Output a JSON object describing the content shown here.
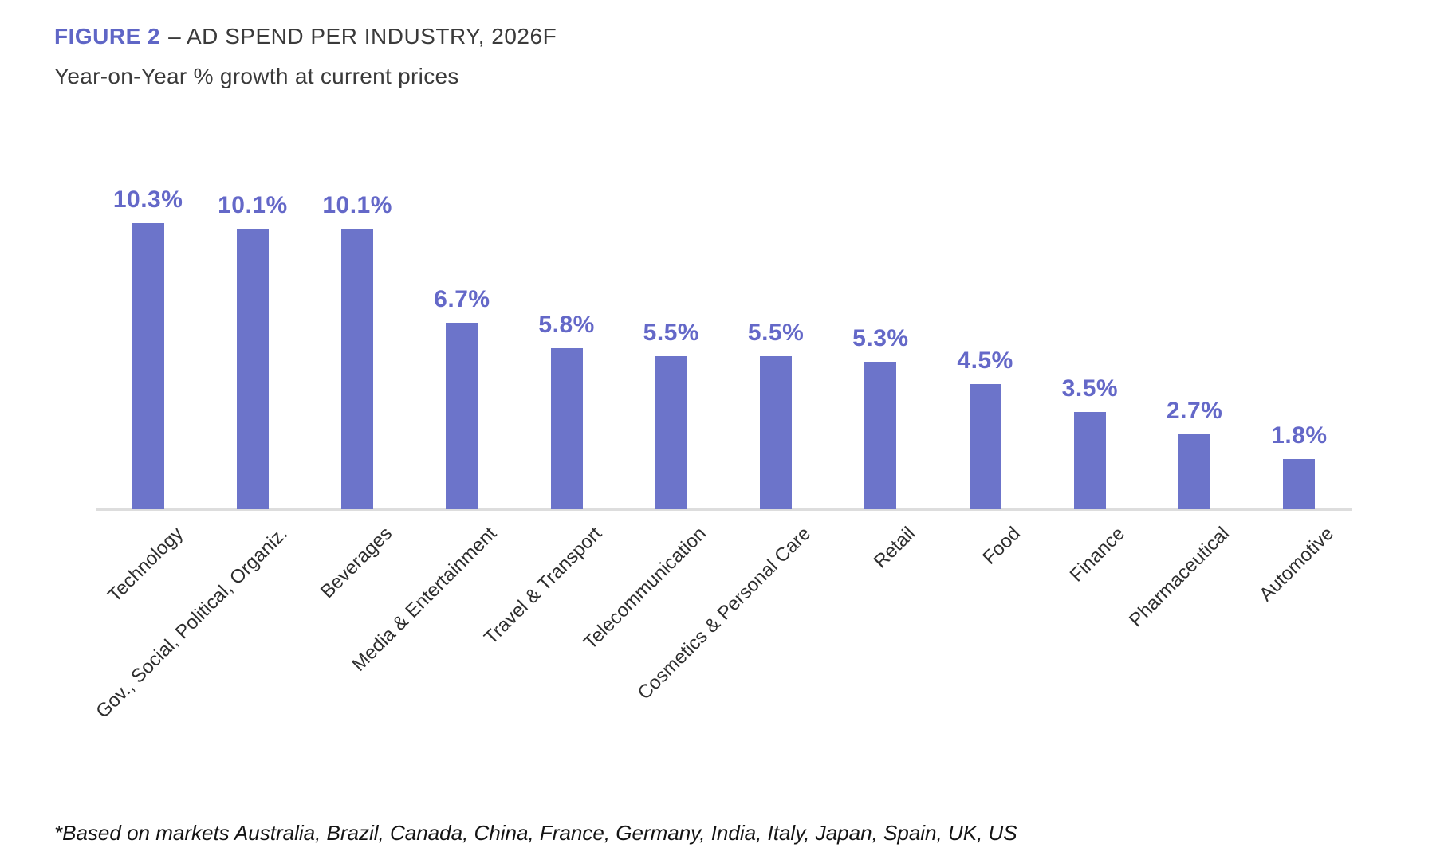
{
  "header": {
    "label": "FIGURE 2",
    "title": "– AD SPEND PER INDUSTRY, 2026F",
    "subtitle": "Year-on-Year % growth at current prices"
  },
  "footnote": "*Based on markets Australia, Brazil, Canada, China, France, Germany, India, Italy, Japan, Spain, UK, US",
  "colors": {
    "accent_blue": "#5F66C6",
    "bar_fill": "#6C74CA",
    "value_label": "#6468C8",
    "axis_line": "#DDDDDD",
    "title_text": "#3A3A3A",
    "category_text": "#2E2E2E"
  },
  "chart_data": {
    "type": "bar",
    "title": "FIGURE 2 – AD SPEND PER INDUSTRY, 2026F",
    "subtitle": "Year-on-Year % growth at current prices",
    "categories": [
      "Technology",
      "Gov., Social, Political, Organiz.",
      "Beverages",
      "Media & Entertainment",
      "Travel & Transport",
      "Telecommunication",
      "Cosmetics & Personal Care",
      "Retail",
      "Food",
      "Finance",
      "Pharmaceutical",
      "Automotive"
    ],
    "values": [
      10.3,
      10.1,
      10.1,
      6.7,
      5.8,
      5.5,
      5.5,
      5.3,
      4.5,
      3.5,
      2.7,
      1.8
    ],
    "value_labels": [
      "10.3%",
      "10.1%",
      "10.1%",
      "6.7%",
      "5.8%",
      "5.5%",
      "5.5%",
      "5.3%",
      "4.5%",
      "3.5%",
      "2.7%",
      "1.8%"
    ],
    "xlabel": "",
    "ylabel": "Year-on-Year % growth at current prices",
    "unit": "%",
    "ylim": [
      0,
      11
    ],
    "grid": false,
    "legend_position": "none",
    "x_tick_rotation": 45,
    "footnote": "*Based on markets Australia, Brazil, Canada, China, France, Germany, India, Italy, Japan, Spain, UK, US"
  }
}
